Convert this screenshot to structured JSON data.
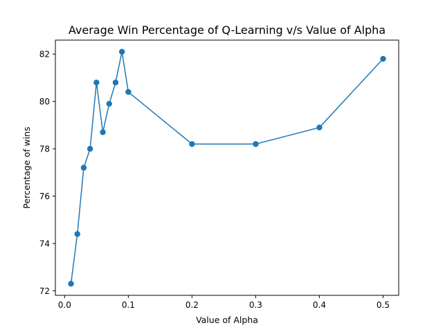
{
  "chart_data": {
    "type": "line",
    "title": "Average Win Percentage of Q-Learning v/s Value of Alpha",
    "xlabel": "Value of Alpha",
    "ylabel": "Percentage of wins",
    "xlim": [
      -0.0145,
      0.5245
    ],
    "ylim": [
      71.81,
      82.59
    ],
    "xticks": [
      0.0,
      0.1,
      0.2,
      0.3,
      0.4,
      0.5
    ],
    "xtick_labels": [
      "0.0",
      "0.1",
      "0.2",
      "0.3",
      "0.4",
      "0.5"
    ],
    "yticks": [
      72,
      74,
      76,
      78,
      80,
      82
    ],
    "ytick_labels": [
      "72",
      "74",
      "76",
      "78",
      "80",
      "82"
    ],
    "grid": false,
    "color": "#1f77b4",
    "marker": "circle",
    "series": [
      {
        "x": [
          0.01,
          0.02,
          0.03,
          0.04,
          0.05,
          0.06,
          0.07,
          0.08,
          0.09,
          0.1,
          0.2,
          0.3,
          0.4,
          0.5
        ],
        "y": [
          72.3,
          74.4,
          77.2,
          78.0,
          80.8,
          78.7,
          79.9,
          80.8,
          82.1,
          80.4,
          78.2,
          78.2,
          78.9,
          81.8
        ]
      }
    ]
  }
}
